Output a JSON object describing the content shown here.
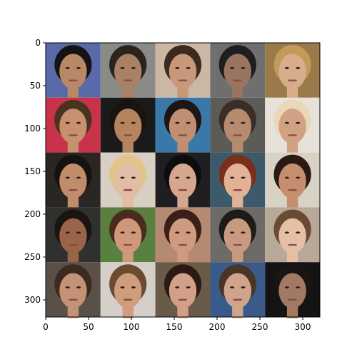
{
  "chart_data": {
    "type": "image-grid",
    "title": "",
    "xlabel": "",
    "ylabel": "",
    "xlim": [
      0,
      320
    ],
    "ylim": [
      320,
      0
    ],
    "grid": false,
    "grid_shape": {
      "rows": 5,
      "cols": 5
    },
    "cell_size": 64,
    "xticks": [
      0,
      50,
      100,
      150,
      200,
      250,
      300
    ],
    "yticks": [
      0,
      50,
      100,
      150,
      200,
      250,
      300
    ],
    "cells": [
      {
        "row": 0,
        "col": 0,
        "bg": "#5a6aa8",
        "skin": "#b98866",
        "hair": "#141414"
      },
      {
        "row": 0,
        "col": 1,
        "bg": "#8a8a86",
        "skin": "#a98266",
        "hair": "#2b231d"
      },
      {
        "row": 0,
        "col": 2,
        "bg": "#cbb8a4",
        "skin": "#c9987a",
        "hair": "#3a2a1f"
      },
      {
        "row": 0,
        "col": 3,
        "bg": "#6f6f70",
        "skin": "#9a7460",
        "hair": "#1e1e20"
      },
      {
        "row": 0,
        "col": 4,
        "bg": "#9a7a4a",
        "skin": "#d8ad8c",
        "hair": "#c49a5a"
      },
      {
        "row": 1,
        "col": 0,
        "bg": "#c8334a",
        "skin": "#c7906e",
        "hair": "#4a3220"
      },
      {
        "row": 1,
        "col": 1,
        "bg": "#1a1a1a",
        "skin": "#b5845f",
        "hair": "#1a1410"
      },
      {
        "row": 1,
        "col": 2,
        "bg": "#3a78a8",
        "skin": "#c08e72",
        "hair": "#1c1614"
      },
      {
        "row": 1,
        "col": 3,
        "bg": "#5b5b58",
        "skin": "#b68a6e",
        "hair": "#3a2e26"
      },
      {
        "row": 1,
        "col": 4,
        "bg": "#e6e2da",
        "skin": "#d1a184",
        "hair": "#e8d8b8"
      },
      {
        "row": 2,
        "col": 0,
        "bg": "#2a2624",
        "skin": "#c08c6a",
        "hair": "#161210"
      },
      {
        "row": 2,
        "col": 1,
        "bg": "#d8cfc4",
        "skin": "#e2bca4",
        "hair": "#e2c48a"
      },
      {
        "row": 2,
        "col": 2,
        "bg": "#1f1f22",
        "skin": "#d4a78e",
        "hair": "#0e0c0c"
      },
      {
        "row": 2,
        "col": 3,
        "bg": "#3c5a6a",
        "skin": "#e1b296",
        "hair": "#7a2e1c"
      },
      {
        "row": 2,
        "col": 4,
        "bg": "#d8d2c4",
        "skin": "#c58e6e",
        "hair": "#2a1a14"
      },
      {
        "row": 3,
        "col": 0,
        "bg": "#30302e",
        "skin": "#9a6448",
        "hair": "#1a1412"
      },
      {
        "row": 3,
        "col": 1,
        "bg": "#5a8040",
        "skin": "#d0987a",
        "hair": "#4a2c1e"
      },
      {
        "row": 3,
        "col": 2,
        "bg": "#b58a72",
        "skin": "#cf9a80",
        "hair": "#3a1e18"
      },
      {
        "row": 3,
        "col": 3,
        "bg": "#6e6a66",
        "skin": "#c89a80",
        "hair": "#1e1a18"
      },
      {
        "row": 3,
        "col": 4,
        "bg": "#b8a898",
        "skin": "#e6c0a6",
        "hair": "#6a4a32"
      },
      {
        "row": 4,
        "col": 0,
        "bg": "#5a5048",
        "skin": "#c49276",
        "hair": "#3a2a20"
      },
      {
        "row": 4,
        "col": 1,
        "bg": "#d4cfc8",
        "skin": "#cf9c7e",
        "hair": "#6a4a30"
      },
      {
        "row": 4,
        "col": 2,
        "bg": "#6a5a48",
        "skin": "#d2a088",
        "hair": "#2a1a12"
      },
      {
        "row": 4,
        "col": 3,
        "bg": "#3a5a8a",
        "skin": "#d0a48c",
        "hair": "#4a3428"
      },
      {
        "row": 4,
        "col": 4,
        "bg": "#141414",
        "skin": "#a27a64",
        "hair": "#1a1412"
      }
    ]
  }
}
